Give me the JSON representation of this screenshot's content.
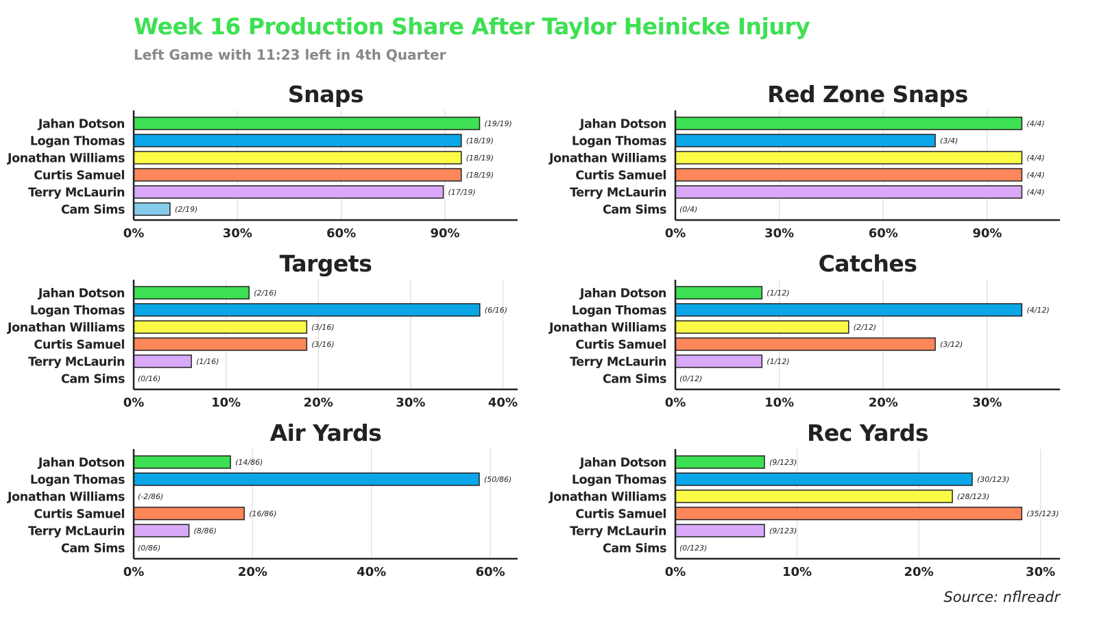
{
  "title": "Week 16 Production Share After Taylor Heinicke Injury",
  "subtitle": "Left Game with 11:23 left in 4th Quarter",
  "source": "Source: nflreadr",
  "colors": {
    "title": "#3ee053",
    "subtitle": "#888888",
    "text": "#222222",
    "grid": "#e3e3e3",
    "axis": "#222222",
    "bar_stroke": "#222222"
  },
  "players": [
    {
      "name": "Jahan Dotson",
      "color": "#3ee053"
    },
    {
      "name": "Logan Thomas",
      "color": "#0aa6e8"
    },
    {
      "name": "Jonathan Williams",
      "color": "#fbfb47"
    },
    {
      "name": "Curtis Samuel",
      "color": "#fd875a"
    },
    {
      "name": "Terry McLaurin",
      "color": "#d9a8f8"
    },
    {
      "name": "Cam Sims",
      "color": "#86ccec"
    }
  ],
  "chart_data": [
    {
      "type": "bar",
      "orientation": "horizontal",
      "title": "Snaps",
      "categories": [
        "Jahan Dotson",
        "Logan Thomas",
        "Jonathan Williams",
        "Curtis Samuel",
        "Terry McLaurin",
        "Cam Sims"
      ],
      "values": [
        100.0,
        94.7,
        94.7,
        94.7,
        89.5,
        10.5
      ],
      "labels": [
        "(19/19)",
        "(18/19)",
        "(18/19)",
        "(18/19)",
        "(17/19)",
        "(2/19)"
      ],
      "xlim": [
        0,
        111
      ],
      "ticks": [
        0,
        30,
        60,
        90
      ],
      "tick_labels": [
        "0%",
        "30%",
        "60%",
        "90%"
      ],
      "xlabel": "",
      "ylabel": ""
    },
    {
      "type": "bar",
      "orientation": "horizontal",
      "title": "Red Zone Snaps",
      "categories": [
        "Jahan Dotson",
        "Logan Thomas",
        "Jonathan Williams",
        "Curtis Samuel",
        "Terry McLaurin",
        "Cam Sims"
      ],
      "values": [
        100,
        75,
        100,
        100,
        100,
        0
      ],
      "labels": [
        "(4/4)",
        "(3/4)",
        "(4/4)",
        "(4/4)",
        "(4/4)",
        "(0/4)"
      ],
      "xlim": [
        0,
        111
      ],
      "ticks": [
        0,
        30,
        60,
        90
      ],
      "tick_labels": [
        "0%",
        "30%",
        "60%",
        "90%"
      ],
      "xlabel": "",
      "ylabel": ""
    },
    {
      "type": "bar",
      "orientation": "horizontal",
      "title": "Targets",
      "categories": [
        "Jahan Dotson",
        "Logan Thomas",
        "Jonathan Williams",
        "Curtis Samuel",
        "Terry McLaurin",
        "Cam Sims"
      ],
      "values": [
        12.5,
        37.5,
        18.75,
        18.75,
        6.25,
        0
      ],
      "labels": [
        "(2/16)",
        "(6/16)",
        "(3/16)",
        "(3/16)",
        "(1/16)",
        "(0/16)"
      ],
      "xlim": [
        0,
        41.6
      ],
      "ticks": [
        0,
        10,
        20,
        30,
        40
      ],
      "tick_labels": [
        "0%",
        "10%",
        "20%",
        "30%",
        "40%"
      ],
      "xlabel": "",
      "ylabel": ""
    },
    {
      "type": "bar",
      "orientation": "horizontal",
      "title": "Catches",
      "categories": [
        "Jahan Dotson",
        "Logan Thomas",
        "Jonathan Williams",
        "Curtis Samuel",
        "Terry McLaurin",
        "Cam Sims"
      ],
      "values": [
        8.33,
        33.33,
        16.67,
        25.0,
        8.33,
        0
      ],
      "labels": [
        "(1/12)",
        "(4/12)",
        "(2/12)",
        "(3/12)",
        "(1/12)",
        "(0/12)"
      ],
      "xlim": [
        0,
        37
      ],
      "ticks": [
        0,
        10,
        20,
        30
      ],
      "tick_labels": [
        "0%",
        "10%",
        "20%",
        "30%"
      ],
      "xlabel": "",
      "ylabel": ""
    },
    {
      "type": "bar",
      "orientation": "horizontal",
      "title": "Air Yards",
      "categories": [
        "Jahan Dotson",
        "Logan Thomas",
        "Jonathan Williams",
        "Curtis Samuel",
        "Terry McLaurin",
        "Cam Sims"
      ],
      "values": [
        16.28,
        58.14,
        -2.33,
        18.6,
        9.3,
        0
      ],
      "labels": [
        "(14/86)",
        "(50/86)",
        "(-2/86)",
        "(16/86)",
        "(8/86)",
        "(0/86)"
      ],
      "xlim": [
        0,
        64.6
      ],
      "ticks": [
        0,
        20,
        40,
        60
      ],
      "tick_labels": [
        "0%",
        "20%",
        "40%",
        "60%"
      ],
      "xlabel": "",
      "ylabel": ""
    },
    {
      "type": "bar",
      "orientation": "horizontal",
      "title": "Rec Yards",
      "categories": [
        "Jahan Dotson",
        "Logan Thomas",
        "Jonathan Williams",
        "Curtis Samuel",
        "Terry McLaurin",
        "Cam Sims"
      ],
      "values": [
        7.32,
        24.39,
        22.76,
        28.46,
        7.32,
        0
      ],
      "labels": [
        "(9/123)",
        "(30/123)",
        "(28/123)",
        "(35/123)",
        "(9/123)",
        "(0/123)"
      ],
      "xlim": [
        0,
        31.6
      ],
      "ticks": [
        0,
        10,
        20,
        30
      ],
      "tick_labels": [
        "0%",
        "10%",
        "20%",
        "30%"
      ],
      "xlabel": "",
      "ylabel": ""
    }
  ]
}
